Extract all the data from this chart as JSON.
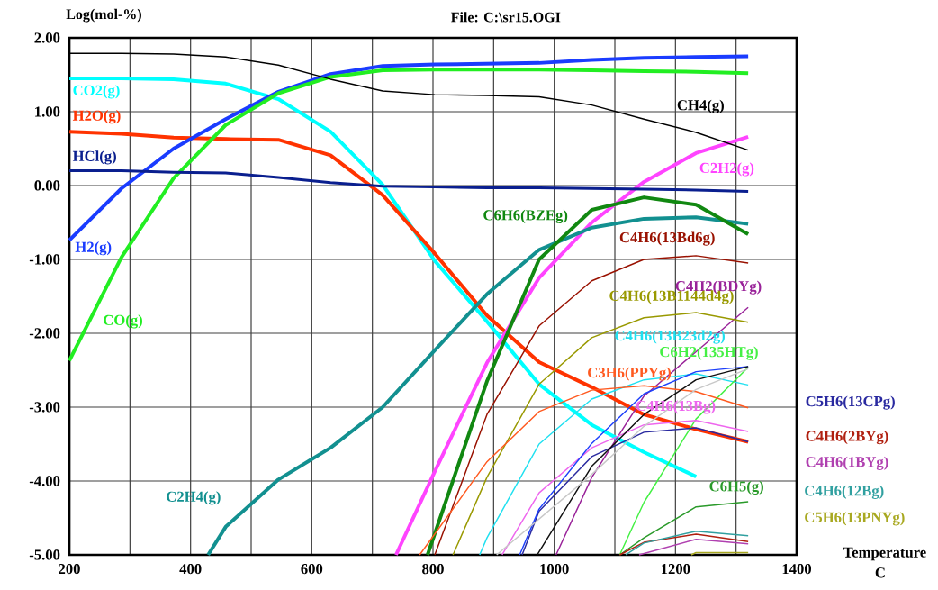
{
  "chart_data": {
    "type": "line",
    "title": "File: C:\\sr15.OGI",
    "ylabel": "Log(mol-%)",
    "xlabel": "Temperature C",
    "xlim": [
      200,
      1400
    ],
    "ylim": [
      -5,
      2
    ],
    "grid": true,
    "xticks": [
      200,
      {
        "value": 300,
        "label": null
      },
      400,
      {
        "value": 500,
        "label": null
      },
      600,
      {
        "value": 700,
        "label": null
      },
      800,
      {
        "value": 900,
        "label": null
      },
      1000,
      {
        "value": 1100,
        "label": null
      },
      1200,
      {
        "value": 1300,
        "label": null
      },
      1400
    ],
    "yticks": [
      {
        "value": 2,
        "label": "2.00"
      },
      {
        "value": 1,
        "label": "1.00"
      },
      {
        "value": 0,
        "label": "0.00"
      },
      {
        "value": -1,
        "label": "-1.00"
      },
      {
        "value": -2,
        "label": "-2.00"
      },
      {
        "value": -3,
        "label": "-3.00"
      },
      {
        "value": -4,
        "label": "-4.00"
      },
      {
        "value": -5,
        "label": "-5.00"
      }
    ],
    "series": [
      {
        "name": "CH4(g)",
        "color": "#000000",
        "x": [
          200,
          286,
          372,
          458,
          545,
          631,
          717,
          803,
          889,
          975,
          1062,
          1148,
          1234,
          1320
        ],
        "values": [
          1.79,
          1.79,
          1.78,
          1.74,
          1.63,
          1.44,
          1.28,
          1.23,
          1.22,
          1.2,
          1.09,
          0.9,
          0.72,
          0.48
        ]
      },
      {
        "name": "CO2(g)",
        "color": "#00ffff",
        "x": [
          200,
          286,
          372,
          458,
          545,
          631,
          717,
          803,
          889,
          975,
          1062,
          1148,
          1234
        ],
        "values": [
          1.45,
          1.45,
          1.44,
          1.38,
          1.17,
          0.73,
          0.01,
          -1.02,
          -1.84,
          -2.69,
          -3.24,
          -3.61,
          -3.94
        ]
      },
      {
        "name": "H2O(g)",
        "color": "#ff3300",
        "x": [
          200,
          286,
          372,
          458,
          545,
          631,
          717,
          803,
          889,
          975,
          1062,
          1148,
          1234,
          1320
        ],
        "values": [
          0.73,
          0.7,
          0.65,
          0.63,
          0.62,
          0.41,
          -0.13,
          -0.92,
          -1.76,
          -2.39,
          -2.73,
          -3.1,
          -3.3,
          -3.47
        ]
      },
      {
        "name": "HCl(g)",
        "color": "#0a1f8f",
        "x": [
          200,
          286,
          372,
          458,
          545,
          631,
          717,
          803,
          889,
          975,
          1062,
          1148,
          1234,
          1320
        ],
        "values": [
          0.2,
          0.2,
          0.18,
          0.17,
          0.11,
          0.04,
          -0.01,
          -0.02,
          -0.03,
          -0.03,
          -0.04,
          -0.05,
          -0.06,
          -0.08
        ]
      },
      {
        "name": "H2(g)",
        "color": "#1a3cff",
        "x": [
          200,
          286,
          372,
          458,
          545,
          631,
          717,
          803,
          889,
          975,
          1062,
          1148,
          1234,
          1320
        ],
        "values": [
          -0.74,
          -0.04,
          0.5,
          0.9,
          1.27,
          1.51,
          1.62,
          1.64,
          1.65,
          1.66,
          1.7,
          1.73,
          1.74,
          1.75
        ]
      },
      {
        "name": "CO(g)",
        "color": "#22ee22",
        "x": [
          200,
          286,
          372,
          458,
          545,
          631,
          717,
          803,
          889,
          975,
          1062,
          1148,
          1234,
          1320
        ],
        "values": [
          -2.37,
          -0.97,
          0.1,
          0.82,
          1.25,
          1.47,
          1.56,
          1.57,
          1.57,
          1.57,
          1.56,
          1.55,
          1.54,
          1.52
        ]
      },
      {
        "name": "C2H2(g)",
        "color": "#ff44ff",
        "x": [
          739,
          803,
          889,
          975,
          1062,
          1148,
          1234,
          1320
        ],
        "values": [
          -5,
          -3.87,
          -2.4,
          -1.25,
          -0.5,
          0.05,
          0.44,
          0.66
        ]
      },
      {
        "name": "C2H4(g)",
        "color": "#129090",
        "x": [
          429,
          458,
          545,
          631,
          717,
          803,
          889,
          975,
          1062,
          1148,
          1234,
          1320
        ],
        "values": [
          -5,
          -4.62,
          -3.98,
          -3.55,
          -3.0,
          -2.23,
          -1.47,
          -0.87,
          -0.57,
          -0.45,
          -0.43,
          -0.52
        ]
      },
      {
        "name": "C6H6(BZEg)",
        "color": "#118811",
        "x": [
          791,
          889,
          975,
          1062,
          1148,
          1234,
          1320
        ],
        "values": [
          -5,
          -2.65,
          -1.0,
          -0.33,
          -0.16,
          -0.26,
          -0.66
        ]
      },
      {
        "name": "C4H6(13Bd6g)",
        "color": "#991100",
        "x": [
          803,
          889,
          975,
          1062,
          1148,
          1234,
          1320
        ],
        "values": [
          -5,
          -3.1,
          -1.9,
          -1.29,
          -1.0,
          -0.95,
          -1.05
        ]
      },
      {
        "name": "C4H2(BDYg)",
        "color": "#992299",
        "x": [
          1003,
          1062,
          1148,
          1234,
          1320
        ],
        "values": [
          -5,
          -3.95,
          -2.85,
          -2.25,
          -1.65
        ]
      },
      {
        "name": "C4H6(13B1144d4g)",
        "color": "#999900",
        "x": [
          833,
          889,
          975,
          1062,
          1148,
          1234,
          1320
        ],
        "values": [
          -5,
          -3.95,
          -2.69,
          -2.06,
          -1.79,
          -1.72,
          -1.85
        ]
      },
      {
        "name": "C4H6(13B23d2g)",
        "color": "#20e0f0",
        "x": [
          877,
          889,
          975,
          1062,
          1148,
          1234,
          1320
        ],
        "values": [
          -5,
          -4.77,
          -3.5,
          -2.89,
          -2.63,
          -2.55,
          -2.7
        ]
      },
      {
        "name": "C6H2(135HTg)",
        "color": "#44f044",
        "x": [
          1108,
          1148,
          1234,
          1320
        ],
        "values": [
          -5,
          -4.29,
          -3.16,
          -2.46
        ]
      },
      {
        "name": "C3H6(PPYg)",
        "color": "#ff5a20",
        "x": [
          778,
          889,
          975,
          1062,
          1148,
          1234,
          1320
        ],
        "values": [
          -5,
          -3.74,
          -3.06,
          -2.77,
          -2.71,
          -2.79,
          -3.01
        ]
      },
      {
        "name": "C4H6(13Bg)",
        "color": "#ee66ee",
        "x": [
          914,
          975,
          1062,
          1148,
          1234,
          1320
        ],
        "values": [
          -5,
          -4.16,
          -3.55,
          -3.24,
          -3.18,
          -3.33
        ]
      },
      {
        "name": "C6H5(g)",
        "color": "#2a9a2a",
        "x": [
          1108,
          1148,
          1234,
          1320
        ],
        "values": [
          -5,
          -4.77,
          -4.35,
          -4.28
        ]
      },
      {
        "name": "C5H6(13CPg)",
        "color": "#2a2aa0",
        "x": [
          947,
          975,
          1062,
          1148,
          1234,
          1320
        ],
        "values": [
          -5,
          -4.41,
          -3.67,
          -3.34,
          -3.28,
          -3.47
        ]
      },
      {
        "name": "C4H6(2BYg)",
        "color": "#b02010",
        "x": [
          1108,
          1148,
          1234,
          1320
        ],
        "values": [
          -5,
          -4.83,
          -4.72,
          -4.82
        ]
      },
      {
        "name": "C4H6(1BYg)",
        "color": "#b040b0",
        "x": [
          1140,
          1234,
          1320
        ],
        "values": [
          -5,
          -4.79,
          -4.85
        ]
      },
      {
        "name": "C4H6(12Bg)",
        "color": "#30a0a0",
        "x": [
          1118,
          1148,
          1234,
          1320
        ],
        "values": [
          -5,
          -4.84,
          -4.68,
          -4.74
        ]
      },
      {
        "name": "C5H6(13PNYg)",
        "color": "#a8a820",
        "x": [
          1226,
          1234,
          1320
        ],
        "values": [
          -5,
          -4.97,
          -4.97
        ]
      },
      {
        "color": "#1e40fa",
        "x": [
          943,
          975,
          1062,
          1148,
          1234,
          1320
        ],
        "values": [
          -5,
          -4.38,
          -3.49,
          -2.82,
          -2.52,
          -2.45
        ]
      },
      {
        "color": "#101010",
        "x": [
          972,
          1062,
          1148,
          1234,
          1320
        ],
        "values": [
          -5,
          -3.8,
          -3.1,
          -2.63,
          -2.45
        ]
      },
      {
        "color": "#c8c8c8",
        "x": [
          905,
          1062,
          1148,
          1234,
          1320
        ],
        "values": [
          -5,
          -3.91,
          -3.26,
          -2.76,
          -2.48
        ]
      }
    ]
  }
}
